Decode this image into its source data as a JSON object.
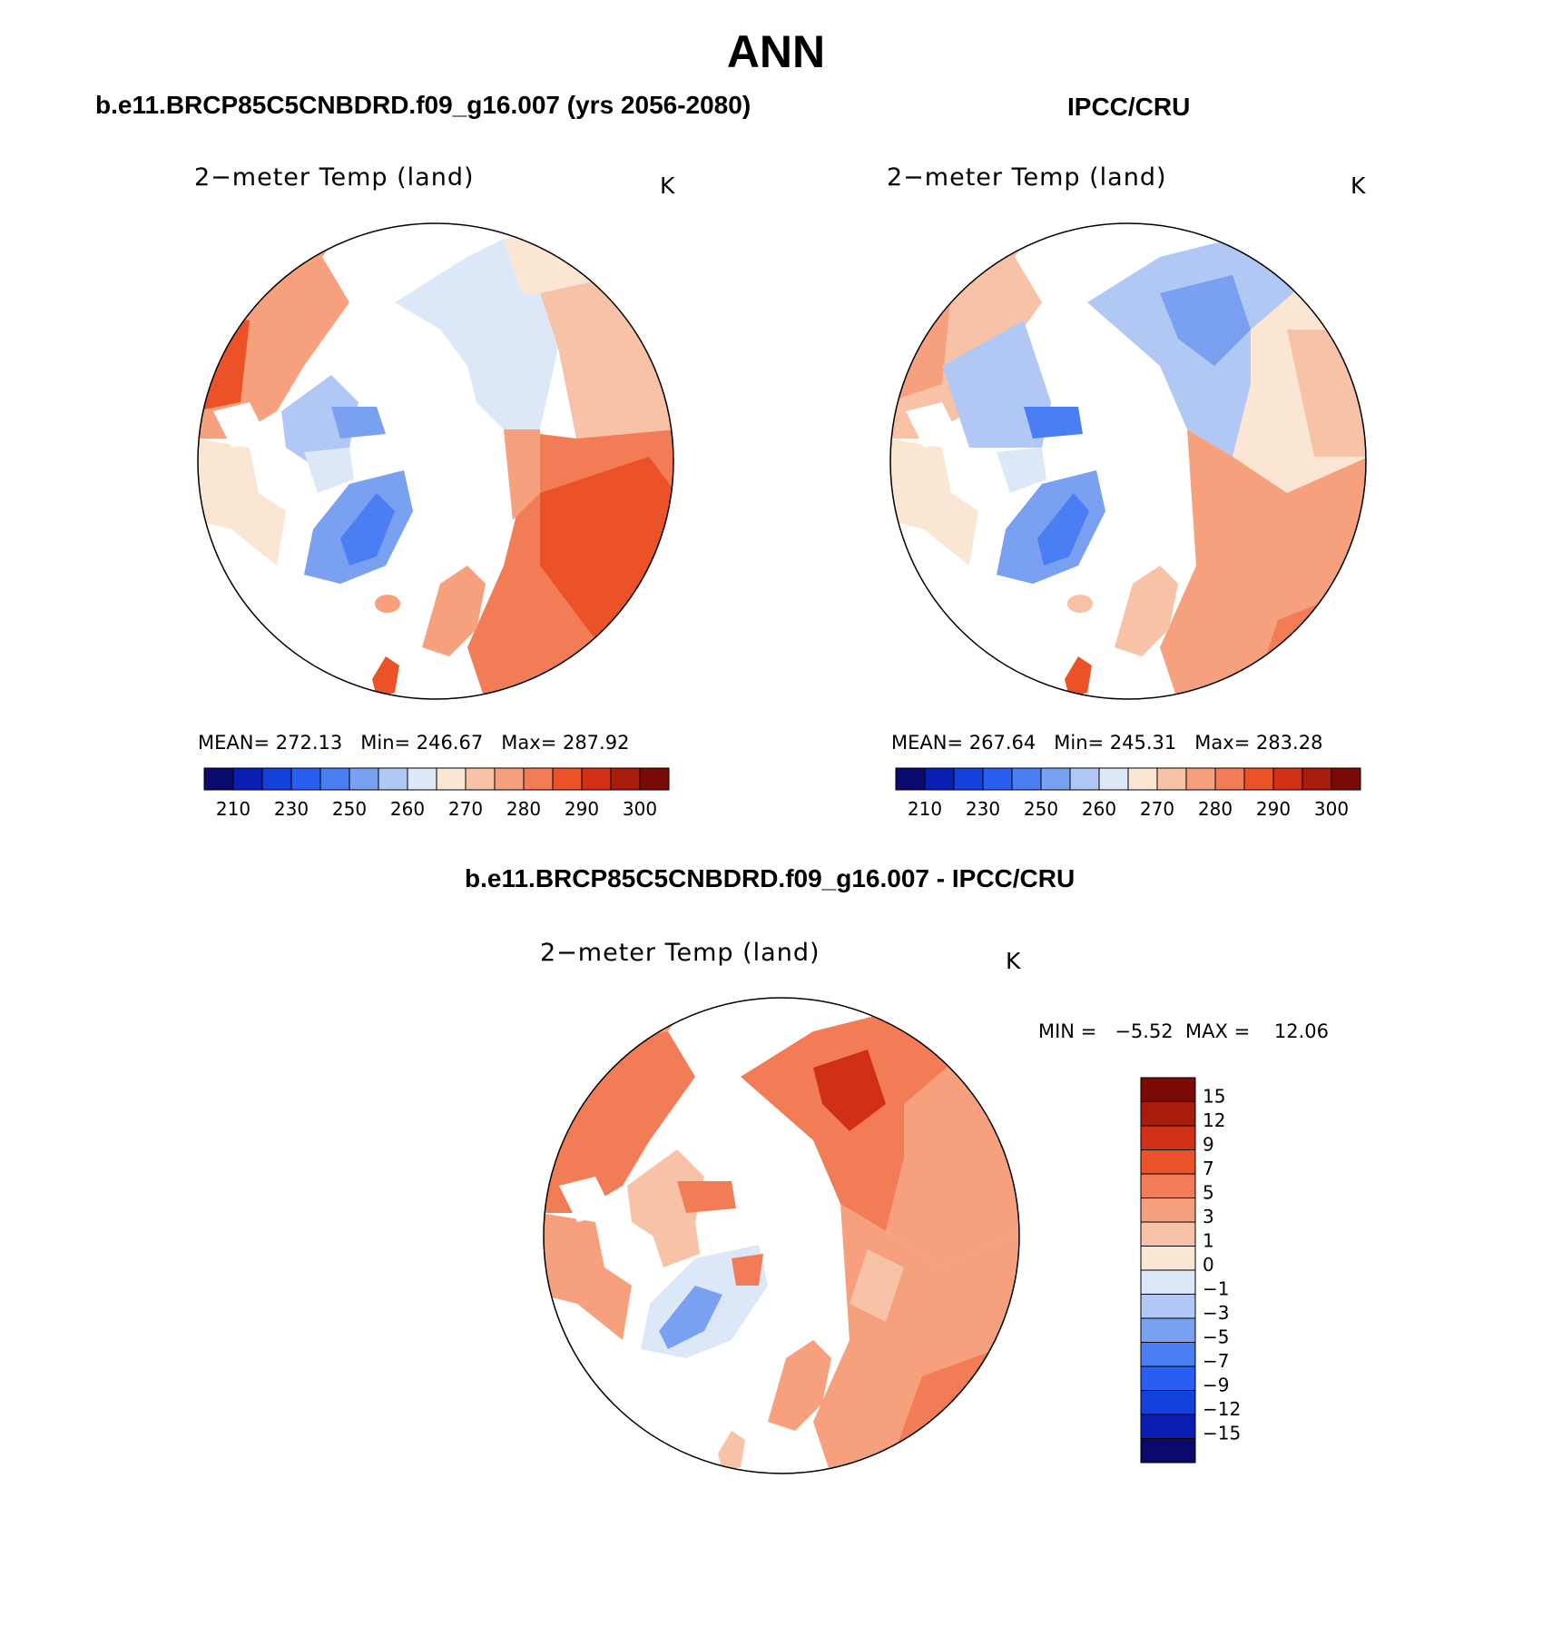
{
  "figure": {
    "season": "ANN"
  },
  "panels": [
    {
      "id": "model",
      "title": "b.e11.BRCP85C5CNBDRD.f09_g16.007 (yrs 2056-2080)",
      "variable": "2−meter Temp (land)",
      "units": "K",
      "stats": "MEAN= 272.13   Min= 246.67   Max= 287.92"
    },
    {
      "id": "obs",
      "title": "IPCC/CRU",
      "variable": "2−meter Temp (land)",
      "units": "K",
      "stats": "MEAN= 267.64   Min= 245.31   Max= 283.28"
    },
    {
      "id": "diff",
      "title": "b.e11.BRCP85C5CNBDRD.f09_g16.007 - IPCC/CRU",
      "variable": "2−meter Temp (land)",
      "units": "K",
      "stats": "MIN =   −5.52  MAX =    12.06"
    }
  ],
  "abs_colorbar": {
    "colors": [
      "#0a0a6e",
      "#0a1eb4",
      "#1440dc",
      "#2a5ef0",
      "#4a7ef2",
      "#7aa0f2",
      "#b2c8f4",
      "#dce8f8",
      "#fbe6d4",
      "#f8c2a6",
      "#f6a07e",
      "#f27c56",
      "#ec5228",
      "#d23014",
      "#a81c0c",
      "#7a0a06"
    ],
    "labels": [
      "210",
      "230",
      "250",
      "260",
      "270",
      "280",
      "290",
      "300"
    ]
  },
  "diff_colorbar": {
    "colors": [
      "#7a0a06",
      "#a81c0c",
      "#d23014",
      "#ec5228",
      "#f27c56",
      "#f6a07e",
      "#f8c2a6",
      "#fbe6d4",
      "#dce8f8",
      "#b2c8f4",
      "#7aa0f2",
      "#4a7ef2",
      "#2a5ef0",
      "#1440dc",
      "#0a1eb4",
      "#0a0a6e"
    ],
    "labels": [
      "15",
      "12",
      "9",
      "7",
      "5",
      "3",
      "1",
      "0",
      "−1",
      "−3",
      "−5",
      "−7",
      "−9",
      "−12",
      "−15"
    ]
  },
  "map_palette": {
    "abs_warm": "#f6a07e",
    "abs_hot": "#ec5228",
    "abs_pale": "#fbe6d4",
    "abs_cool": "#b2c8f4",
    "abs_cold": "#4a7ef2",
    "diff_warm": "#f27c56",
    "diff_mid": "#f6a07e",
    "diff_hot": "#d23014",
    "diff_cool": "#7aa0f2",
    "ocean": "#ffffff"
  }
}
